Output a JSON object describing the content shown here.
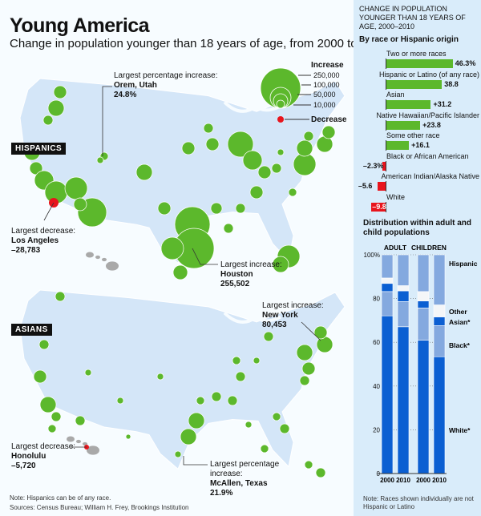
{
  "header": {
    "title": "Young America",
    "subtitle": "Change in population younger than 18 years of age, from 2000 to 2010"
  },
  "legend": {
    "title": "Increase",
    "sizes": [
      "250,000",
      "100,000",
      "50,000",
      "10,000"
    ],
    "decrease": "Decrease",
    "colors": {
      "increase": "#5cb82c",
      "decrease": "#e8141c"
    }
  },
  "hispanics_map": {
    "tag": "HISPANICS",
    "pct_increase": {
      "label": "Largest percentage increase:",
      "place": "Orem, Utah",
      "value": "24.8%"
    },
    "decrease": {
      "label": "Largest decrease:",
      "place": "Los Angeles",
      "value": "–28,783"
    },
    "increase": {
      "label": "Largest increase:",
      "place": "Houston",
      "value": "255,502"
    }
  },
  "asians_map": {
    "tag": "ASIANS",
    "increase": {
      "label": "Largest increase:",
      "place": "New York",
      "value": "80,453"
    },
    "decrease": {
      "label": "Largest decrease:",
      "place": "Honolulu",
      "value": "–5,720"
    },
    "pct_increase": {
      "label1": "Largest percentage",
      "label2": "increase:",
      "place": "McAllen, Texas",
      "value": "21.9%"
    }
  },
  "footer": {
    "note": "Note: Hispanics can be of any race.",
    "sources": "Sources: Census Bureau; William H. Frey, Brookings Institution"
  },
  "chart_data": [
    {
      "type": "bar",
      "orientation": "horizontal",
      "title": "CHANGE IN POPULATION YOUNGER THAN 18 YEARS OF AGE, 2000–2010",
      "subtitle": "By race or Hispanic origin",
      "categories": [
        "Two or more races",
        "Hispanic or Latino (of any race)",
        "Asian",
        "Native Hawaiian/Pacific Islander",
        "Some other race",
        "Black or African American",
        "American Indian/Alaska Native",
        "White"
      ],
      "values": [
        46.3,
        38.8,
        31.2,
        23.8,
        16.1,
        -2.3,
        -5.6,
        -9.8
      ],
      "labels": [
        "46.3%",
        "38.8",
        "+31.2",
        "+23.8",
        "+16.1",
        "–2.3%",
        "–5.6",
        "–9.8"
      ],
      "unit": "%"
    },
    {
      "type": "bar",
      "stacked": true,
      "title": "Distribution within adult and child populations",
      "groups": [
        "ADULT",
        "CHILDREN"
      ],
      "categories": [
        "2000",
        "2010",
        "2000",
        "2010"
      ],
      "yticks": [
        "100%",
        "80",
        "60",
        "40",
        "20",
        "0"
      ],
      "ylim": [
        0,
        100
      ],
      "grid": true,
      "series": [
        {
          "name": "White*",
          "color": "#0b5fd2",
          "values": [
            72.1,
            67.1,
            61.0,
            53.4
          ]
        },
        {
          "name": "Black*",
          "color": "#84a9df",
          "values": [
            11.1,
            11.5,
            14.7,
            14.2
          ]
        },
        {
          "name": "Asian*",
          "color": "#0b5fd2",
          "values": [
            3.7,
            4.9,
            3.2,
            4.0
          ]
        },
        {
          "name": "Other",
          "color": "#f4f6f8",
          "values": [
            2.5,
            2.4,
            4.3,
            5.5
          ]
        },
        {
          "name": "Hispanic",
          "color": "#84a9df",
          "values": [
            10.6,
            14.1,
            16.8,
            22.9
          ]
        }
      ],
      "note": "Note: Races shown individually are not Hispanic or Latino"
    }
  ]
}
